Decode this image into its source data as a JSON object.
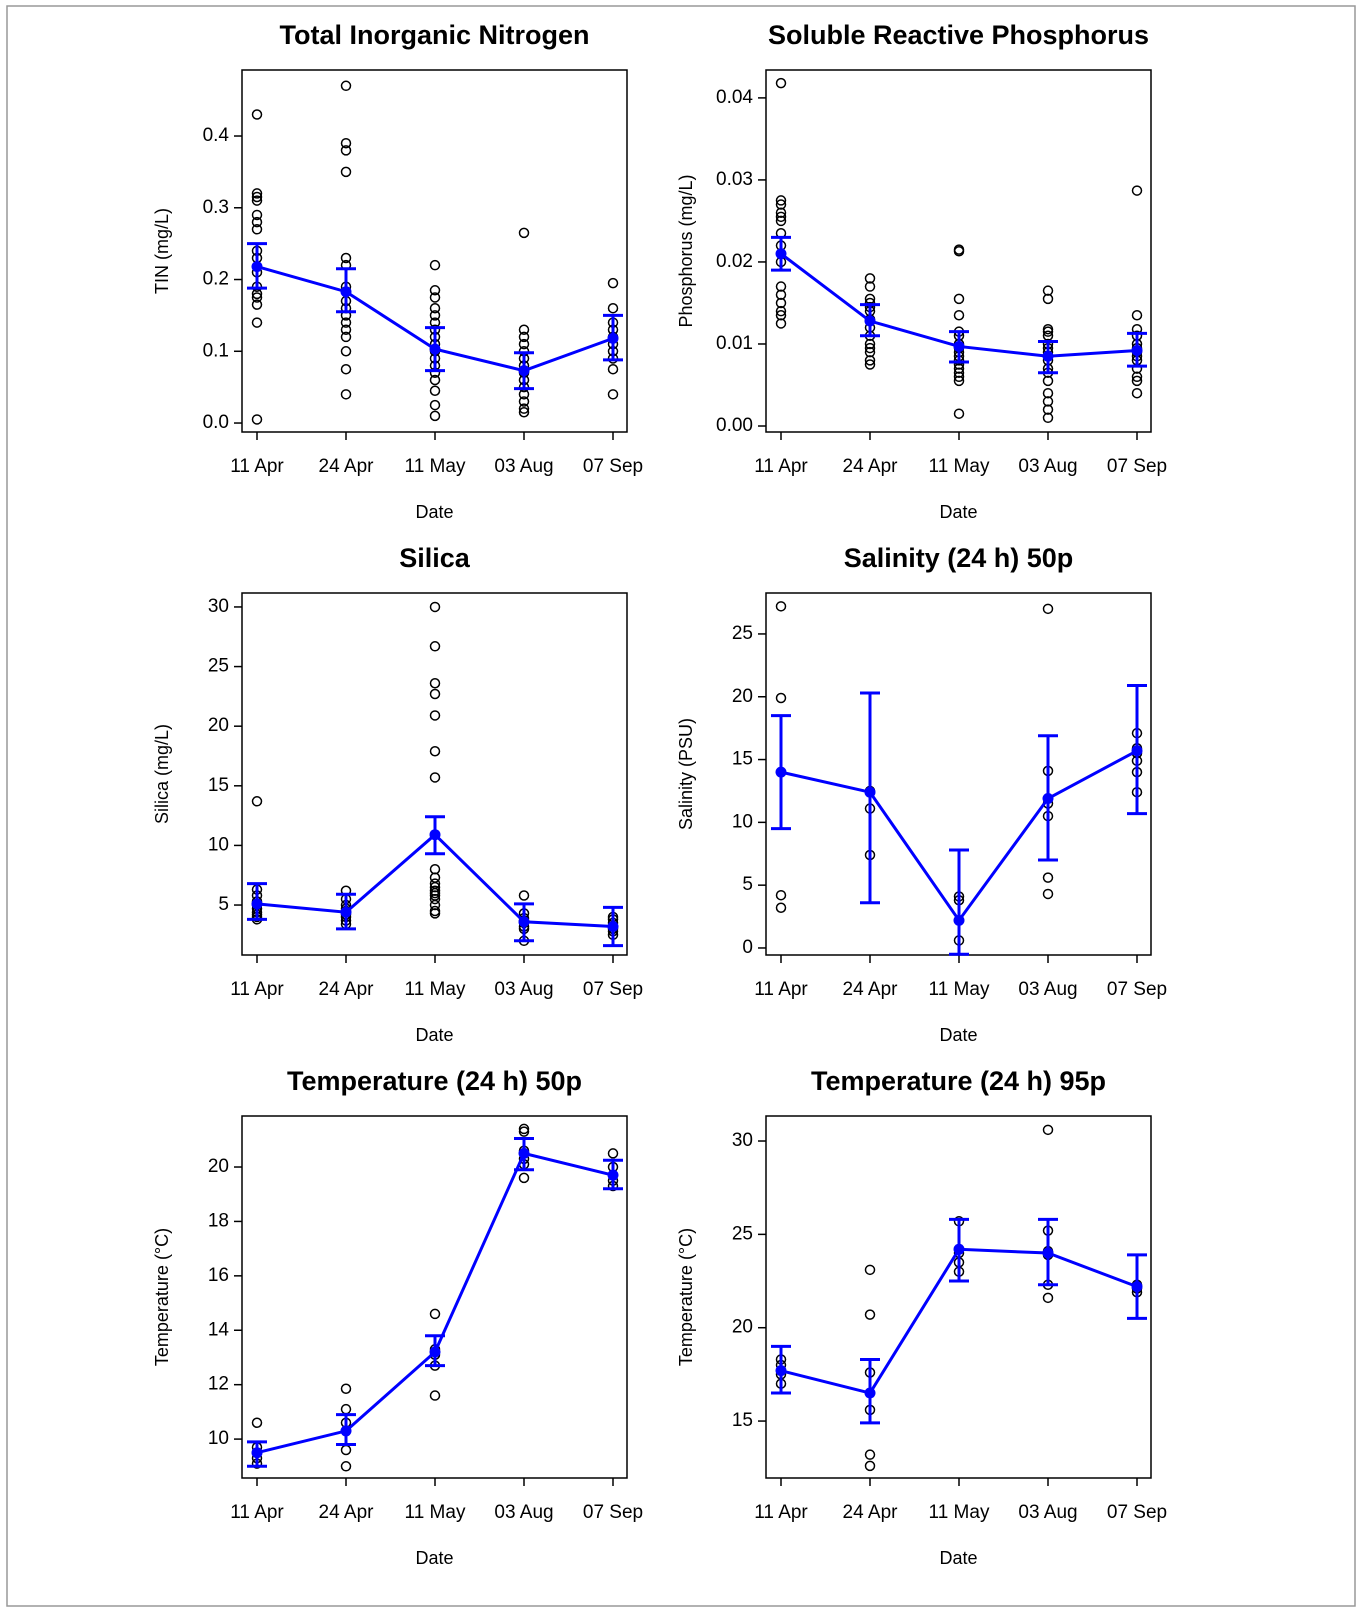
{
  "chart_data": [
    {
      "type": "errorbar",
      "title": "Total Inorganic Nitrogen",
      "x_label": "Date",
      "y_label": "TIN (mg/L)",
      "categories": [
        "11 Apr",
        "24 Apr",
        "11 May",
        "03 Aug",
        "07 Sep"
      ],
      "ylim": [
        -0.0125,
        0.492
      ],
      "yticks": [
        {
          "value": 0,
          "label": "0.0"
        },
        0.1,
        0.2,
        0.3,
        0.4
      ],
      "point_color": "#000000",
      "color": "#0000ff",
      "observations": [
        [
          0.43,
          0.32,
          0.315,
          0.31,
          0.29,
          0.28,
          0.27,
          0.24,
          0.23,
          0.21,
          0.19,
          0.18,
          0.175,
          0.165,
          0.14,
          0.005
        ],
        [
          0.47,
          0.39,
          0.38,
          0.35,
          0.23,
          0.22,
          0.19,
          0.17,
          0.16,
          0.15,
          0.14,
          0.13,
          0.12,
          0.1,
          0.075,
          0.04
        ],
        [
          0.22,
          0.185,
          0.175,
          0.16,
          0.15,
          0.14,
          0.13,
          0.12,
          0.11,
          0.1,
          0.09,
          0.08,
          0.07,
          0.06,
          0.045,
          0.025,
          0.01
        ],
        [
          0.265,
          0.13,
          0.12,
          0.11,
          0.1,
          0.09,
          0.08,
          0.07,
          0.06,
          0.05,
          0.04,
          0.03,
          0.02,
          0.015
        ],
        [
          0.195,
          0.16,
          0.14,
          0.13,
          0.12,
          0.11,
          0.1,
          0.09,
          0.075,
          0.04
        ]
      ],
      "means": [
        0.218,
        0.183,
        0.103,
        0.073,
        0.118
      ],
      "ci_low": [
        0.188,
        0.155,
        0.073,
        0.048,
        0.088
      ],
      "ci_high": [
        0.25,
        0.215,
        0.133,
        0.098,
        0.15
      ]
    },
    {
      "type": "errorbar",
      "title": "Soluble Reactive Phosphorus",
      "x_label": "Date",
      "y_label": "Phosphorus (mg/L)",
      "categories": [
        "11 Apr",
        "24 Apr",
        "11 May",
        "03 Aug",
        "07 Sep"
      ],
      "ylim": [
        -0.00073,
        0.0434
      ],
      "yticks": [
        {
          "value": 0,
          "label": "0.00"
        },
        0.01,
        0.02,
        0.03,
        0.04
      ],
      "point_color": "#000000",
      "color": "#0000ff",
      "observations": [
        [
          0.0418,
          0.0275,
          0.027,
          0.026,
          0.0255,
          0.025,
          0.0235,
          0.022,
          0.02,
          0.017,
          0.016,
          0.015,
          0.014,
          0.0135,
          0.0125
        ],
        [
          0.018,
          0.017,
          0.0155,
          0.015,
          0.0145,
          0.014,
          0.013,
          0.012,
          0.011,
          0.01,
          0.0095,
          0.009,
          0.008,
          0.0075
        ],
        [
          0.0215,
          0.0213,
          0.0155,
          0.0135,
          0.0115,
          0.011,
          0.01,
          0.0095,
          0.009,
          0.0085,
          0.008,
          0.0075,
          0.007,
          0.0065,
          0.006,
          0.0055,
          0.0015
        ],
        [
          0.0165,
          0.0155,
          0.0118,
          0.0115,
          0.011,
          0.01,
          0.0095,
          0.009,
          0.008,
          0.007,
          0.0065,
          0.0055,
          0.004,
          0.003,
          0.002,
          0.001
        ],
        [
          0.0287,
          0.0135,
          0.0118,
          0.011,
          0.01,
          0.0095,
          0.009,
          0.0085,
          0.008,
          0.007,
          0.006,
          0.0055,
          0.004
        ]
      ],
      "means": [
        0.021,
        0.0128,
        0.0097,
        0.0085,
        0.0092
      ],
      "ci_low": [
        0.019,
        0.011,
        0.0078,
        0.0065,
        0.0073
      ],
      "ci_high": [
        0.023,
        0.0148,
        0.0115,
        0.0103,
        0.0113
      ]
    },
    {
      "type": "errorbar",
      "title": "Silica",
      "x_label": "Date",
      "y_label": "Silica (mg/L)",
      "categories": [
        "11 Apr",
        "24 Apr",
        "11 May",
        "03 Aug",
        "07 Sep"
      ],
      "ylim": [
        0.81,
        31.17
      ],
      "yticks": [
        5,
        10,
        15,
        20,
        25,
        30
      ],
      "point_color": "#000000",
      "color": "#0000ff",
      "observations": [
        [
          13.7,
          6.3,
          5.8,
          5.3,
          5.0,
          4.7,
          4.4,
          4.2,
          4.0,
          3.8
        ],
        [
          6.2,
          5.5,
          5.0,
          4.7,
          4.5,
          4.2,
          4.0,
          3.7,
          3.4
        ],
        [
          30.0,
          26.7,
          23.6,
          22.7,
          20.9,
          17.9,
          15.7,
          8.0,
          7.3,
          6.8,
          6.5,
          6.2,
          6.0,
          5.8,
          5.5,
          5.0,
          4.5,
          4.3
        ],
        [
          5.8,
          4.3,
          3.9,
          3.7,
          3.5,
          3.2,
          3.0,
          2.0
        ],
        [
          4.0,
          3.8,
          3.5,
          3.2,
          3.0,
          2.8,
          2.5
        ]
      ],
      "means": [
        5.1,
        4.4,
        10.9,
        3.6,
        3.2
      ],
      "ci_low": [
        3.8,
        3.0,
        9.3,
        2.0,
        1.6
      ],
      "ci_high": [
        6.8,
        5.9,
        12.4,
        5.1,
        4.8
      ]
    },
    {
      "type": "errorbar",
      "title": "Salinity (24 h) 50p",
      "x_label": "Date",
      "y_label": "Salinity (PSU)",
      "categories": [
        "11 Apr",
        "24 Apr",
        "11 May",
        "03 Aug",
        "07 Sep"
      ],
      "ylim": [
        -0.56,
        28.26
      ],
      "yticks": [
        0,
        5,
        10,
        15,
        20,
        25
      ],
      "point_color": "#000000",
      "color": "#0000ff",
      "observations": [
        [
          27.2,
          19.9,
          4.2,
          3.2
        ],
        [
          12.5,
          11.1,
          7.4
        ],
        [
          4.1,
          3.8,
          0.6
        ],
        [
          27.0,
          14.1,
          11.5,
          10.5,
          5.6,
          4.3
        ],
        [
          17.1,
          15.9,
          15.5,
          14.9,
          14.0,
          12.4
        ]
      ],
      "means": [
        14.0,
        12.4,
        2.2,
        11.9,
        15.7
      ],
      "ci_low": [
        9.5,
        3.6,
        -0.5,
        7.0,
        10.7
      ],
      "ci_high": [
        18.5,
        20.3,
        7.8,
        16.9,
        20.9
      ]
    },
    {
      "type": "errorbar",
      "title": "Temperature (24 h) 50p",
      "x_label": "Date",
      "y_label": "Temperature (°C)",
      "categories": [
        "11 Apr",
        "24 Apr",
        "11 May",
        "03 Aug",
        "07 Sep"
      ],
      "ylim": [
        8.57,
        21.875
      ],
      "yticks": [
        10,
        12,
        14,
        16,
        18,
        20
      ],
      "point_color": "#000000",
      "color": "#0000ff",
      "observations": [
        [
          10.6,
          9.7,
          9.5,
          9.3,
          9.1
        ],
        [
          11.85,
          11.1,
          10.6,
          10.3,
          9.6,
          9.0
        ],
        [
          14.6,
          13.3,
          13.1,
          12.7,
          11.6
        ],
        [
          21.4,
          21.3,
          20.6,
          20.3,
          20.1,
          19.6
        ],
        [
          20.5,
          20.0,
          19.7,
          19.5,
          19.3
        ]
      ],
      "means": [
        9.5,
        10.3,
        13.2,
        20.5,
        19.7
      ],
      "ci_low": [
        9.0,
        9.8,
        12.7,
        19.9,
        19.2
      ],
      "ci_high": [
        9.9,
        10.9,
        13.8,
        21.05,
        20.25
      ]
    },
    {
      "type": "errorbar",
      "title": "Temperature (24 h) 95p",
      "x_label": "Date",
      "y_label": "Temperature (°C)",
      "categories": [
        "11 Apr",
        "24 Apr",
        "11 May",
        "03 Aug",
        "07 Sep"
      ],
      "ylim": [
        11.95,
        31.34
      ],
      "yticks": [
        15,
        20,
        25,
        30
      ],
      "point_color": "#000000",
      "color": "#0000ff",
      "observations": [
        [
          18.3,
          18.0,
          17.5,
          17.0
        ],
        [
          23.1,
          20.7,
          17.6,
          15.6,
          13.2,
          12.6
        ],
        [
          25.7,
          24.0,
          23.5,
          23.0
        ],
        [
          30.6,
          25.2,
          24.1,
          23.9,
          22.3,
          21.6
        ],
        [
          22.3,
          22.1,
          21.9
        ]
      ],
      "means": [
        17.7,
        16.5,
        24.2,
        24.0,
        22.2
      ],
      "ci_low": [
        16.5,
        14.9,
        22.5,
        22.3,
        20.5
      ],
      "ci_high": [
        19.0,
        18.3,
        25.8,
        25.8,
        23.9
      ]
    }
  ]
}
